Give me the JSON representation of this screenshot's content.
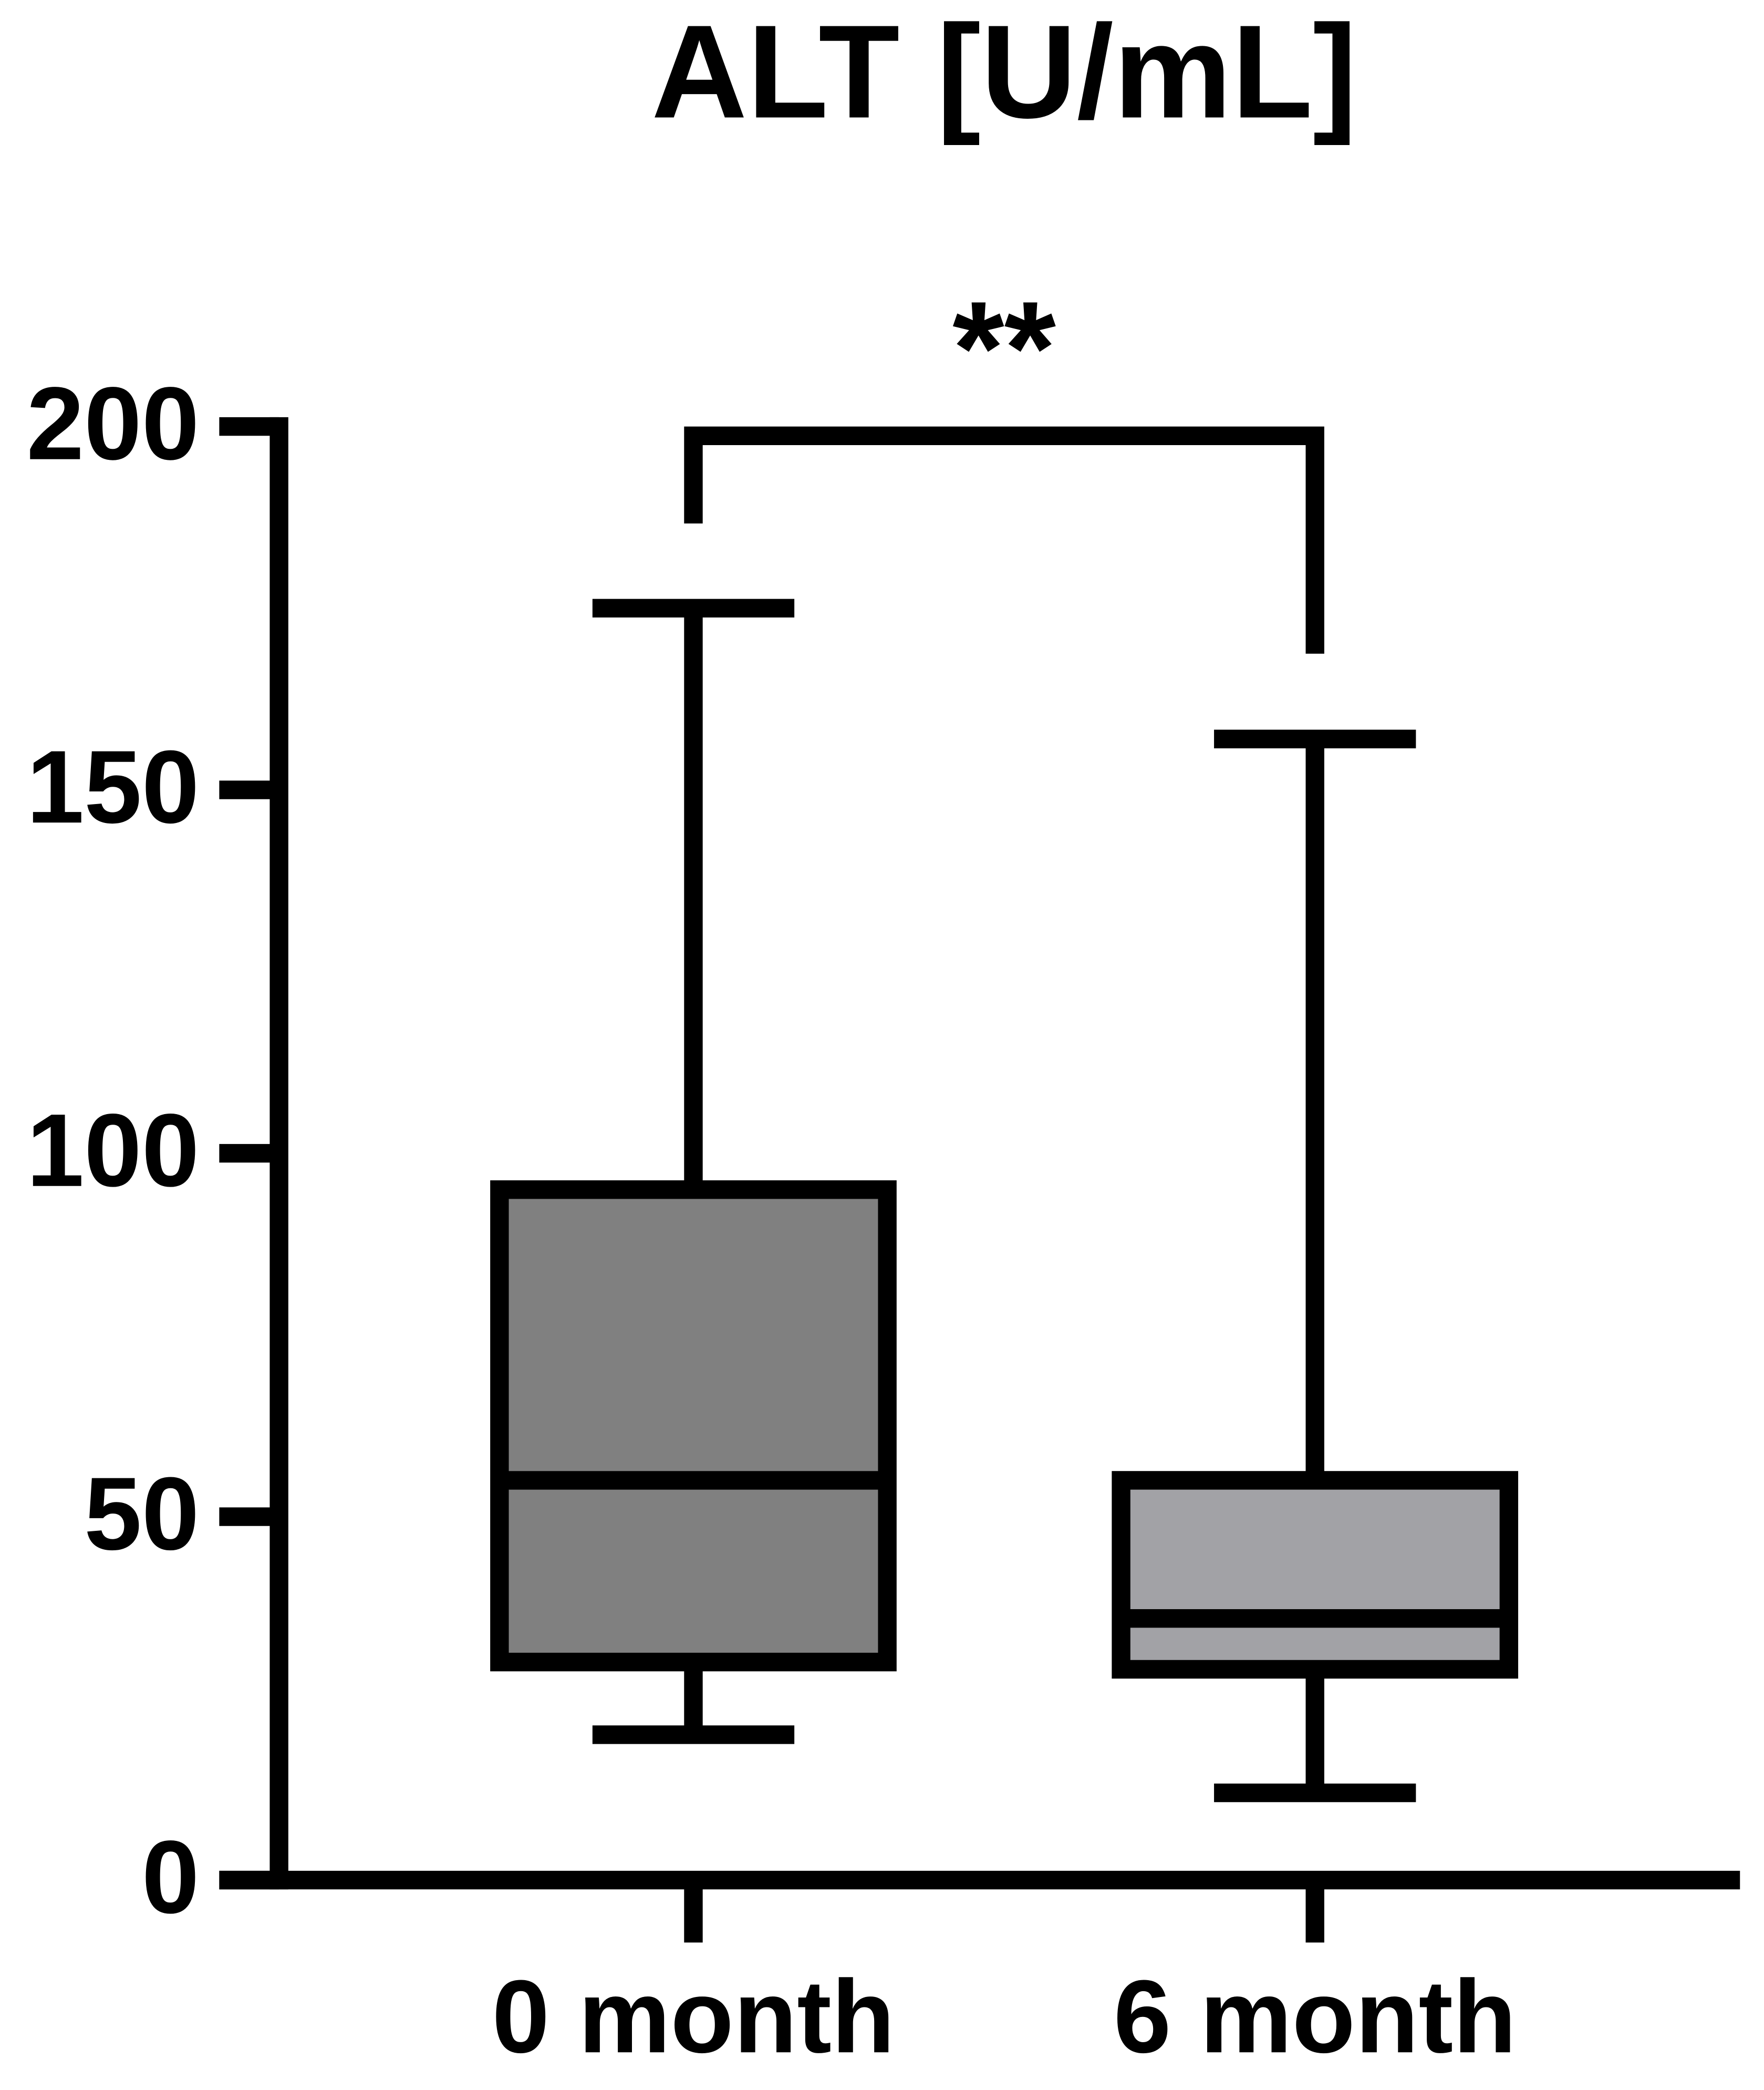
{
  "chart_data": {
    "type": "box",
    "title": "ALT [U/mL]",
    "categories": [
      "0 month",
      "6 month"
    ],
    "values": [
      {
        "min": 20,
        "q1": 30,
        "median": 55,
        "q3": 95,
        "max": 175
      },
      {
        "min": 12,
        "q1": 29,
        "median": 36,
        "q3": 55,
        "max": 157
      }
    ],
    "colors": [
      "#808080",
      "#a2a2a6"
    ],
    "ylim": [
      0,
      200
    ],
    "yticks": [
      0,
      50,
      100,
      150,
      200
    ],
    "annotation": "**"
  }
}
